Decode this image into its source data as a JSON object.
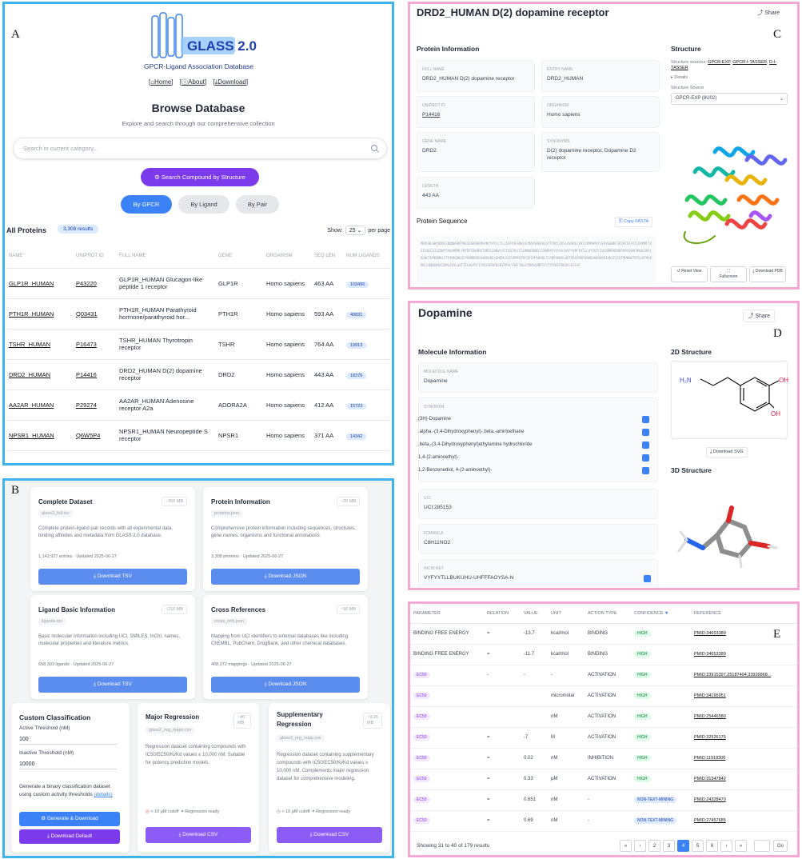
{
  "panel_labels": {
    "a": "A",
    "b": "B",
    "c": "C",
    "d": "D",
    "e": "E"
  },
  "browse": {
    "logo_text": "GLASS 2.0",
    "logo_sub": "GPCR-Ligand Association Database",
    "nav": [
      "Home",
      "About",
      "Download"
    ],
    "title": "Browse Database",
    "subtitle": "Explore and search through our comprehensive collection",
    "search_placeholder": "Search in current category...",
    "structure_button": "Search Compound by Structure",
    "tabs": [
      "By GPCR",
      "By Ligand",
      "By Pair"
    ],
    "list_title": "All Proteins",
    "count": "3,308 results",
    "show_label": "Show:",
    "show_value": "25",
    "per_page": "per page",
    "columns": [
      "NAME",
      "UNIPROT ID",
      "FULL NAME",
      "GENE",
      "ORGANISM",
      "SEQ LEN",
      "NUM LIGANDS"
    ],
    "rows": [
      {
        "name": "GLP1R_HUMAN",
        "id": "P43220",
        "full": "GLP1R_HUMAN Glucagon-like peptide 1 receptor",
        "gene": "GLP1R",
        "org": "Homo sapiens",
        "len": "463 AA",
        "lig": "103490"
      },
      {
        "name": "PTH1R_HUMAN",
        "id": "Q03431",
        "full": "PTH1R_HUMAN Parathyroid hormone/parathyroid hor...",
        "gene": "PTH1R",
        "org": "Homo sapiens",
        "len": "593 AA",
        "lig": "40831"
      },
      {
        "name": "TSHR_HUMAN",
        "id": "P16473",
        "full": "TSHR_HUMAN Thyrotropin receptor",
        "gene": "TSHR",
        "org": "Homo sapiens",
        "len": "764 AA",
        "lig": "19913"
      },
      {
        "name": "DRD2_HUMAN",
        "id": "P14416",
        "full": "DRD2_HUMAN D(2) dopamine receptor",
        "gene": "DRD2",
        "org": "Homo sapiens",
        "len": "443 AA",
        "lig": "18376"
      },
      {
        "name": "AA2AR_HUMAN",
        "id": "P29274",
        "full": "AA2AR_HUMAN Adenosine receptor A2a",
        "gene": "ADORA2A",
        "org": "Homo sapiens",
        "len": "412 AA",
        "lig": "15723"
      },
      {
        "name": "NPSR1_HUMAN",
        "id": "Q6W5P4",
        "full": "NPSR1_HUMAN Neuropeptide S receptor",
        "gene": "NPSR1",
        "org": "Homo sapiens",
        "len": "371 AA",
        "lig": "14342"
      }
    ]
  },
  "downloads": {
    "cards": [
      {
        "title": "Complete Dataset",
        "size": "~350 MB",
        "file": "glass2_full.tsv",
        "desc": "Complete protein-ligand pair records with all experimental data, binding affinities and metadata from GLASS 2.0 database.",
        "meta": "1,142,927 entries · Updated 2025-06-27",
        "button": "Download TSV"
      },
      {
        "title": "Protein Information",
        "size": "~20 MB",
        "file": "proteins.json",
        "desc": "Comprehensive protein information including sequences, structures, gene names, organisms and functional annotations.",
        "meta": "3,308 proteins · Updated 2025-06-27",
        "button": "Download JSON"
      },
      {
        "title": "Ligand Basic Information",
        "size": "~210 MB",
        "file": "ligands.tsv",
        "desc": "Basic molecular information including UCI, SMILES, InChI, names, molecular properties and literature metrics.",
        "meta": "658,303 ligands · Updated 2025-06-27",
        "button": "Download TSV"
      },
      {
        "title": "Cross References",
        "size": "~90 MB",
        "file": "cross_refs.json",
        "desc": "Mapping from UCI identifiers to external databases like including ChEMBL, PubChem, DrugBank, and other chemical databases.",
        "meta": "408,272 mappings · Updated 2025-06-27",
        "button": "Download JSON"
      }
    ],
    "custom": {
      "title": "Custom Classification",
      "active_label": "Active Threshold (nM)",
      "active_value": "100",
      "inactive_label": "Inactive Threshold (nM)",
      "inactive_value": "10000",
      "desc": "Generate a binary classification dataset using custom activity thresholds",
      "details": "(details)",
      "gen_button": "Generate & Download",
      "default_button": "Download Default"
    },
    "major": {
      "title": "Major Regression",
      "size": "~40 MB",
      "file": "glass2_reg_major.csv",
      "desc": "Regression dataset containing compounds with IC50/EC50/Ki/Kd values ≤ 10,000 nM. Suitable for potency prediction models.",
      "meta1": "< 10 μM cutoff",
      "meta2": "Regression ready",
      "button": "Download CSV"
    },
    "supp": {
      "title": "Supplementary Regression",
      "size": "~9.25 MB",
      "file": "glass2_reg_supp.csv",
      "desc": "Regression dataset containing supplementary compounds with IC50/EC50/Ki/Kd values ≥ 10,000 nM. Complements major regression dataset for comprehensive modeling.",
      "meta1": "> 10 μM cutoff",
      "meta2": "Regression ready",
      "button": "Download CSV"
    }
  },
  "protein": {
    "title": "DRD2_HUMAN D(2) dopamine receptor",
    "share": "Share",
    "info_title": "Protein Information",
    "full_name_label": "FULL NAME",
    "full_name": "DRD2_HUMAN D(2) dopamine receptor",
    "entry_label": "ENTRY NAME",
    "entry": "DRD2_HUMAN",
    "uniprot_label": "UNIPROT ID",
    "uniprot": "P14416",
    "organism_label": "ORGANISM",
    "organism": "Homo sapiens",
    "gene_label": "GENE NAME",
    "gene": "DRD2",
    "syn_label": "SYNONYMS",
    "syn": "D(2) dopamine receptor, Dopamine D2 receptor",
    "length_label": "LENGTH",
    "length": "443 AA",
    "seq_title": "Protein Sequence",
    "copy_fasta": "Copy FASTA",
    "sequence": "MDPLNLSWYDDDLERQNWSRPFNGSDGKADRPHYNYYATLLTLLIAVIVFGNVLVCMAVSREKALQTTTNYLIVSLAVADLLVATLVMPWVVYLEVVGEWKFSRIHCDIFVTLDVMMCTASILNLCAISIDRYTAVAMPMLYNTRYSSKRRVTVMISIVWVLSFTISCPLLFGLNNADQNECIIANPAFVVYSSIVSFYVPFIVTLLVYIKIYIVLRRRRKRVNTKRSSRAFRAHLRAPLKGNCTHPEDMKLCTVIMKSNGSFPVNRRRVEAARRAQELEMEMLSSTSPPERTRYSPIPPSHHQLTLPDPSHHGLHSTPDSPAKPEKNGHAKDHPKIAKIFEIQTMPNGKTRTSLKTMSRRKLSQQKEKKATQMLAIVLGVFIICWLPFFITHILNIHCDCNIPPVLYSAFTWLGYVNSAVNPIIYTTFNIEFRKAFLKILHC",
    "struct_title": "Structure",
    "struct_src": "Structure sources:",
    "src_links": [
      "GPCR-EXP",
      "GPCR-I-TASSER",
      "D-I-TASSER"
    ],
    "details": "▸ Details",
    "source_label": "Structure Source",
    "source_value": "GPCR-EXP (8U02)",
    "buttons": [
      "Reset View",
      "Fullscreen",
      "Download PDB"
    ]
  },
  "ligand": {
    "title": "Dopamine",
    "share": "Share",
    "info_title": "Molecule Information",
    "mol_label": "MOLECULE NAME",
    "mol": "Dopamine",
    "syn_label": "SYNONYM",
    "synonyms": [
      "(3H)-Dopamine",
      ".alpha.-(3,4-Dihydroxyphenyl)-.beta.-aminoethane",
      ".beta.-(3,4-Dihydroxyphenyl)ethylamine hydrochloride",
      "1,4-(2-aminoethyl)-",
      "1,2-Benzenediol, 4-(2-aminoethyl)-"
    ],
    "uci_label": "UCI",
    "uci": "UCI:285153",
    "formula_label": "FORMULA",
    "formula": "C8H11NO2",
    "inchi_label": "INCHI KEY",
    "inchi": "VYFYYTLLBUKUHU-UHFFFAOYSA-N",
    "s2d_title": "2D Structure",
    "svg_button": "Download SVG",
    "s3d_title": "3D Structure",
    "atoms": {
      "nh2": "H₂N",
      "oh1": "OH",
      "oh2": "OH"
    }
  },
  "activity": {
    "columns": [
      "PARAMETER",
      "RELATION",
      "VALUE",
      "UNIT",
      "ACTION TYPE",
      "CONFIDENCE",
      "REFERENCE"
    ],
    "rows": [
      {
        "p": "BINDING FREE ENERGY",
        "r": "=",
        "v": "-13.7",
        "u": "kcal/mol",
        "a": "BINDING",
        "c": "HIGH",
        "ref": "PMID:34653389"
      },
      {
        "p": "BINDING FREE ENERGY",
        "r": "=",
        "v": "-11.7",
        "u": "kcal/mol",
        "a": "BINDING",
        "c": "HIGH",
        "ref": "PMID:34653389"
      },
      {
        "p": "EC50",
        "r": "-",
        "v": "-",
        "u": "-",
        "a": "ACTIVATION",
        "c": "HIGH",
        "ref": "PMID:23915397,25187404,33926868..."
      },
      {
        "p": "EC50",
        "r": "",
        "v": "",
        "u": "micromolar",
        "a": "ACTIVATION",
        "c": "HIGH",
        "ref": "PMID:34195951"
      },
      {
        "p": "EC50",
        "r": "",
        "v": "",
        "u": "nM",
        "a": "ACTIVATION",
        "c": "HIGH",
        "ref": "PMID:25446580"
      },
      {
        "p": "EC50",
        "r": "=",
        "v": "-7",
        "u": "M",
        "a": "ACTIVATION",
        "c": "HIGH",
        "ref": "PMID:32526175"
      },
      {
        "p": "EC50",
        "r": "=",
        "v": "0.02",
        "u": "nM",
        "a": "INHIBITION",
        "c": "HIGH",
        "ref": "PMID:11918300"
      },
      {
        "p": "EC50",
        "r": "=",
        "v": "0.33",
        "u": "μM",
        "a": "ACTIVATION",
        "c": "HIGH",
        "ref": "PMID:31347842"
      },
      {
        "p": "EC50",
        "r": "=",
        "v": "0.651",
        "u": "nM",
        "a": "-",
        "c": "NON-TEXT-MINING",
        "ref": "PMID:24328470"
      },
      {
        "p": "EC50",
        "r": "=",
        "v": "0.69",
        "u": "nM",
        "a": "-",
        "c": "NON-TEXT-MINING",
        "ref": "PMID:27457685"
      }
    ],
    "showing": "Showing 31 to 40 of 179 results",
    "pages": [
      "«",
      "‹",
      "2",
      "3",
      "4",
      "5",
      "6",
      "›",
      "»"
    ],
    "go": "Go"
  }
}
